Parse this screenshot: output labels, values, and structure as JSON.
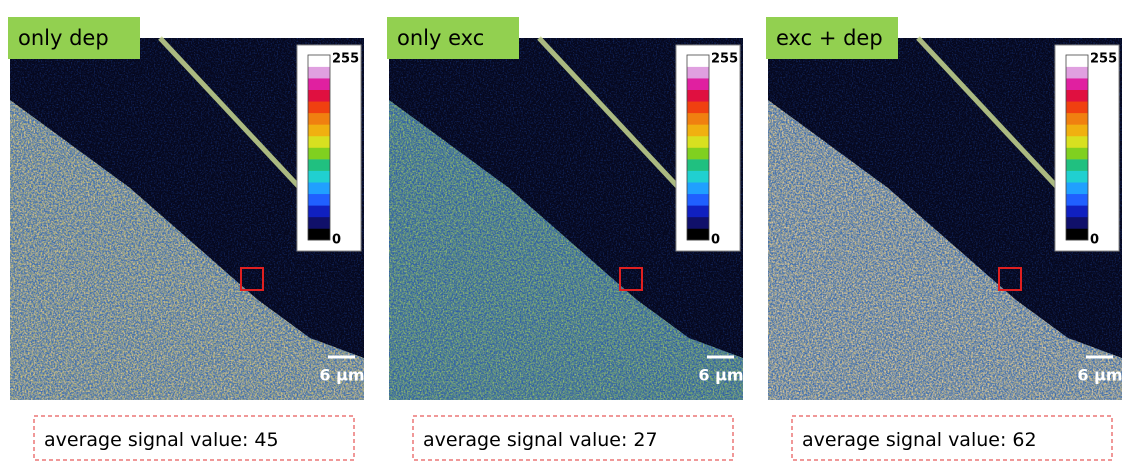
{
  "panels": [
    {
      "label": "only dep",
      "colorbar": {
        "max": 255,
        "min": 0
      },
      "scale_bar": "6 µm",
      "caption": {
        "text": "average signal value:",
        "value": 45
      }
    },
    {
      "label": "only exc",
      "colorbar": {
        "max": 255,
        "min": 0
      },
      "scale_bar": "6 µm",
      "caption": {
        "text": "average signal value:",
        "value": 27
      }
    },
    {
      "label": "exc + dep",
      "colorbar": {
        "max": 255,
        "min": 0
      },
      "scale_bar": "6 µm",
      "caption": {
        "text": "average signal value:",
        "value": 62
      }
    }
  ]
}
